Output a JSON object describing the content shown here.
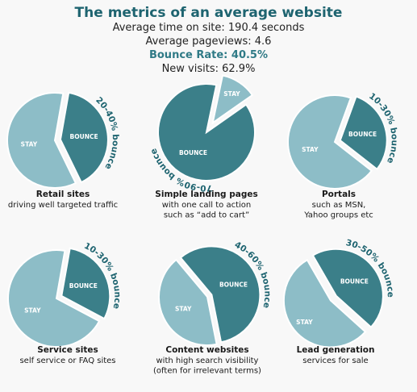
{
  "header": {
    "title": "The metrics of an average website",
    "lines": [
      "Average time on site: 190.4 seconds",
      "Average pageviews: 4.6",
      "Bounce Rate: 40.5%",
      "New visits: 62.9%"
    ]
  },
  "colors": {
    "bounce": "#3b7f89",
    "stay": "#8dbdc7",
    "stroke": "#ffffff",
    "accent": "#2f7a86"
  },
  "chart_data": {
    "type": "pie",
    "slice_labels": {
      "bounce": "BOUNCE",
      "stay": "STAY"
    },
    "charts": [
      {
        "bounce_text": "20-40% bounce",
        "bounce_value": 0.4,
        "title": "Retail sites",
        "subtitle": [
          "driving well targeted traffic"
        ]
      },
      {
        "bounce_text": "70-90% bounce",
        "bounce_value": 0.88,
        "title": "Simple landing pages",
        "subtitle": [
          "with one call to action",
          "such as “add to cart”"
        ]
      },
      {
        "bounce_text": "10-30% bounce",
        "bounce_value": 0.3,
        "title": "Portals",
        "subtitle": [
          "such as MSN,",
          "Yahoo groups etc"
        ]
      },
      {
        "bounce_text": "10-30% bounce",
        "bounce_value": 0.3,
        "title": "Service sites",
        "subtitle": [
          "self service or FAQ sites"
        ]
      },
      {
        "bounce_text": "40-60% bounce",
        "bounce_value": 0.58,
        "title": "Content websites",
        "subtitle": [
          "with high search visibility",
          "(often for irrelevant terms)"
        ]
      },
      {
        "bounce_text": "30-50% bounce",
        "bounce_value": 0.45,
        "title": "Lead generation",
        "subtitle": [
          "services for sale"
        ]
      }
    ]
  }
}
